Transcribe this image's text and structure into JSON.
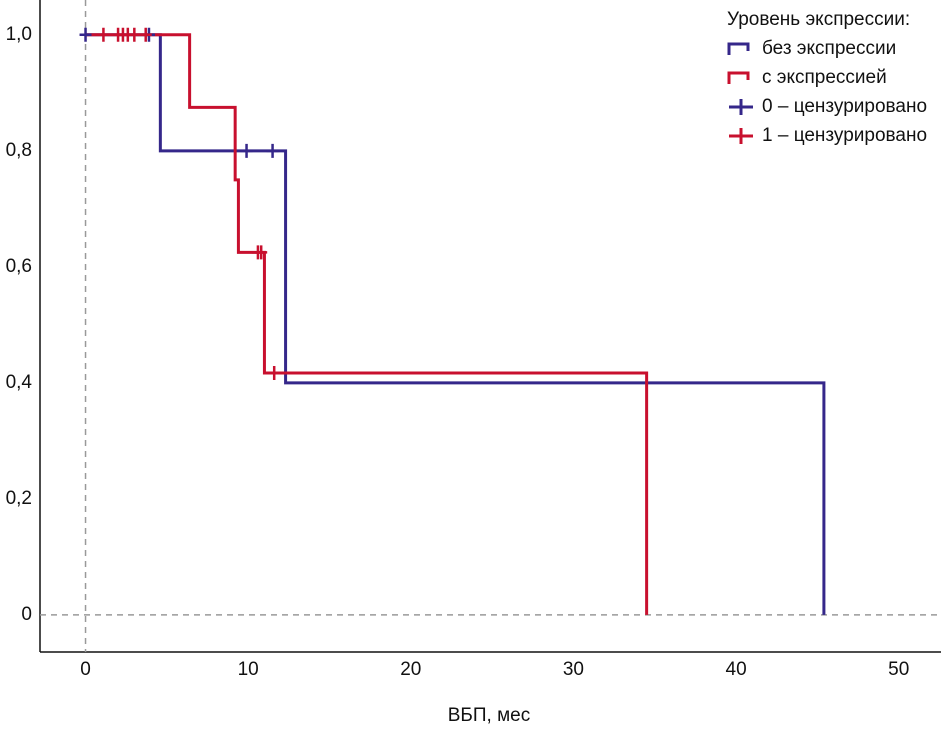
{
  "chart_data": {
    "type": "step",
    "x_label": "ВБП, мес",
    "legend_title": "Уровень экспрессии:",
    "legend_position": "upper right",
    "xlim": [
      -2.8,
      52.6
    ],
    "ylim": [
      -0.064,
      1.06
    ],
    "xticks": [
      0,
      10,
      20,
      30,
      40,
      50
    ],
    "yticks": [
      {
        "value": 1.0,
        "label": "1,0"
      },
      {
        "value": 0.8,
        "label": "0,8"
      },
      {
        "value": 0.6,
        "label": "0,6"
      },
      {
        "value": 0.4,
        "label": "0,4"
      },
      {
        "value": 0.2,
        "label": "0,2"
      },
      0
    ],
    "series": [
      {
        "name": "без экспрессии",
        "color": "#35278a",
        "x": [
          0,
          4.6,
          12.3,
          45.4
        ],
        "values": [
          1,
          0.8,
          0.4,
          0
        ]
      },
      {
        "name": "с экспрессией",
        "color": "#c8102e",
        "x": [
          0,
          6.4,
          9.2,
          9.4,
          11.0,
          34.5
        ],
        "values": [
          1,
          0.875,
          0.75,
          0.625,
          0.417,
          0
        ]
      }
    ],
    "censored": [
      {
        "name": "0 – цензурировано",
        "color": "#35278a",
        "x": [
          0,
          3.9,
          9.9,
          11.5
        ],
        "values": [
          1,
          1,
          0.8,
          0.8
        ]
      },
      {
        "name": "1 – цензурировано",
        "color": "#c8102e",
        "x": [
          1.1,
          2.0,
          2.3,
          2.6,
          3.0,
          3.7,
          10.6,
          10.8,
          11.6
        ],
        "values": [
          1,
          1,
          1,
          1,
          1,
          1,
          0.625,
          0.625,
          0.417
        ]
      }
    ]
  }
}
